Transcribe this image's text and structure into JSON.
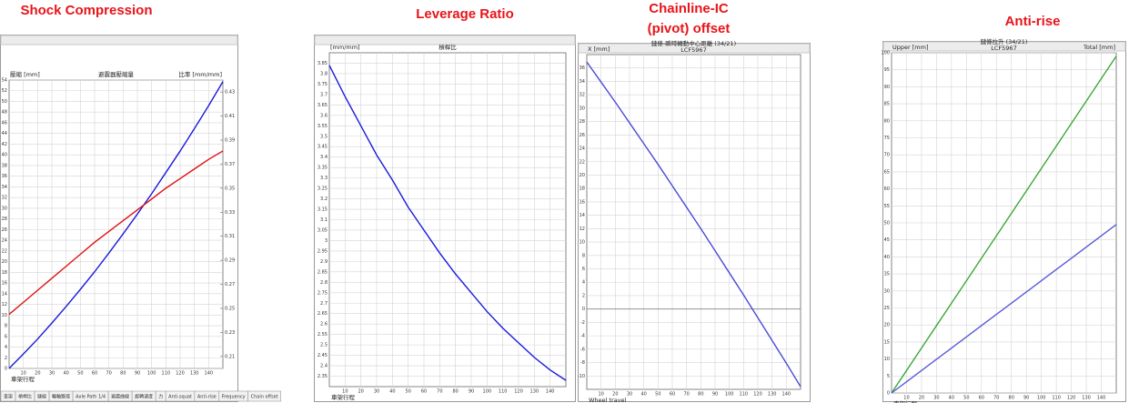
{
  "chart_data": [
    {
      "type": "line",
      "heading": "Shock Compression",
      "title": "避震器壓縮量",
      "x_label": "車架行程",
      "y_label": "壓縮 [mm]",
      "y2_label": "比率 [mm/mm]",
      "x": [
        0,
        10,
        20,
        30,
        40,
        50,
        60,
        70,
        80,
        90,
        100,
        110,
        120,
        130,
        140,
        150
      ],
      "series": [
        {
          "name": "壓縮",
          "color": "#1a1adc",
          "values": [
            0,
            2.7,
            5.5,
            8.5,
            11.6,
            14.8,
            18.1,
            21.6,
            25.2,
            28.9,
            32.7,
            36.7,
            40.7,
            44.9,
            49.2,
            53.7
          ]
        },
        {
          "name": "比率",
          "color": "#e01010",
          "axis": "y2",
          "values": [
            0.245,
            0.255,
            0.265,
            0.275,
            0.285,
            0.295,
            0.305,
            0.314,
            0.323,
            0.332,
            0.341,
            0.35,
            0.358,
            0.366,
            0.374,
            0.381
          ]
        }
      ],
      "xlim": [
        0,
        150
      ],
      "xticks": [
        10,
        20,
        30,
        40,
        50,
        60,
        70,
        80,
        90,
        100,
        110,
        120,
        130,
        140
      ],
      "ylim": [
        0,
        54
      ],
      "yticks": [
        0,
        2,
        4,
        6,
        8,
        10,
        12,
        14,
        16,
        18,
        20,
        22,
        24,
        26,
        28,
        30,
        32,
        34,
        36,
        38,
        40,
        42,
        44,
        46,
        48,
        50,
        52,
        54
      ],
      "y2lim": [
        0.2,
        0.44
      ],
      "y2ticks": [
        0.21,
        0.23,
        0.25,
        0.27,
        0.29,
        0.31,
        0.33,
        0.35,
        0.37,
        0.39,
        0.41,
        0.43
      ],
      "grid": true,
      "tabs": [
        "車架",
        "槓桿比",
        "鏈線",
        "輪軸路徑",
        "Axle Path 1/4",
        "避震曲線",
        "旋轉速度",
        "力",
        "Anti-squat",
        "Anti-rise",
        "Frequency",
        "Chain offset"
      ]
    },
    {
      "type": "line",
      "heading": "Leverage Ratio",
      "title": "槓桿比",
      "x_label": "車架行程",
      "y_label": "[mm/mm]",
      "x": [
        0,
        10,
        20,
        30,
        40,
        50,
        60,
        70,
        80,
        90,
        100,
        110,
        120,
        130,
        140,
        150
      ],
      "series": [
        {
          "name": "槓桿比",
          "color": "#1a1adc",
          "values": [
            3.84,
            3.69,
            3.55,
            3.41,
            3.29,
            3.16,
            3.05,
            2.94,
            2.84,
            2.75,
            2.66,
            2.58,
            2.51,
            2.44,
            2.38,
            2.33
          ]
        }
      ],
      "xlim": [
        0,
        150
      ],
      "xticks": [
        10,
        20,
        30,
        40,
        50,
        60,
        70,
        80,
        90,
        100,
        110,
        120,
        130,
        140
      ],
      "ylim": [
        2.3,
        3.9
      ],
      "yticks": [
        2.35,
        2.4,
        2.45,
        2.5,
        2.55,
        2.6,
        2.65,
        2.7,
        2.75,
        2.8,
        2.85,
        2.9,
        2.95,
        3,
        3.05,
        3.1,
        3.15,
        3.2,
        3.25,
        3.3,
        3.35,
        3.4,
        3.45,
        3.5,
        3.55,
        3.6,
        3.65,
        3.7,
        3.75,
        3.8,
        3.85
      ],
      "grid": true
    },
    {
      "type": "line",
      "heading": [
        "Chainline-IC",
        "(pivot) offset"
      ],
      "title": "鏈條-瞬時轉動中心距離 (34/21)",
      "subtitle": "LCF5967",
      "x_label": "Wheel travel",
      "y_label": "X [mm]",
      "x": [
        0,
        10,
        20,
        30,
        40,
        50,
        60,
        70,
        80,
        90,
        100,
        110,
        120,
        130,
        140,
        150
      ],
      "series": [
        {
          "name": "X",
          "color": "#4a4ad8",
          "values": [
            36.9,
            33.9,
            30.9,
            27.8,
            24.7,
            21.6,
            18.4,
            15.2,
            12,
            8.7,
            5.4,
            2.1,
            -1.3,
            -4.7,
            -8.1,
            -11.6
          ]
        }
      ],
      "xlim": [
        0,
        150
      ],
      "xticks": [
        10,
        20,
        30,
        40,
        50,
        60,
        70,
        80,
        90,
        100,
        110,
        120,
        130,
        140
      ],
      "ylim": [
        -12,
        38
      ],
      "yticks": [
        -10,
        -8,
        -6,
        -4,
        -2,
        0,
        2,
        4,
        6,
        8,
        10,
        12,
        14,
        16,
        18,
        20,
        22,
        24,
        26,
        28,
        30,
        32,
        34,
        36
      ],
      "grid": true,
      "zero_line": true
    },
    {
      "type": "line",
      "heading": "Anti-rise",
      "title": "鏈條拉升 (34/21)",
      "subtitle": "LCF5967",
      "x_label": "車架行程",
      "y_label": "Upper [mm]",
      "y2_label": "Total [mm]",
      "x": [
        0,
        10,
        20,
        30,
        40,
        50,
        60,
        70,
        80,
        90,
        100,
        110,
        120,
        130,
        140,
        150
      ],
      "series": [
        {
          "name": "Total",
          "color": "#3aa83a",
          "values": [
            0,
            6.6,
            13.2,
            19.8,
            26.4,
            33,
            39.6,
            46.2,
            52.8,
            59.4,
            66,
            72.6,
            79.2,
            85.8,
            92.4,
            99
          ]
        },
        {
          "name": "Upper",
          "color": "#5a5ad8",
          "values": [
            0,
            3.3,
            6.6,
            9.9,
            13.2,
            16.5,
            19.8,
            23.1,
            26.4,
            29.7,
            33,
            36.3,
            39.6,
            42.9,
            46.2,
            49.5
          ]
        }
      ],
      "xlim": [
        0,
        150
      ],
      "xticks": [
        10,
        20,
        30,
        40,
        50,
        60,
        70,
        80,
        90,
        100,
        110,
        120,
        130,
        140
      ],
      "ylim": [
        0,
        100
      ],
      "yticks": [
        0,
        5,
        10,
        15,
        20,
        25,
        30,
        35,
        40,
        45,
        50,
        55,
        60,
        65,
        70,
        75,
        80,
        85,
        90,
        95,
        100
      ],
      "grid": true
    }
  ]
}
